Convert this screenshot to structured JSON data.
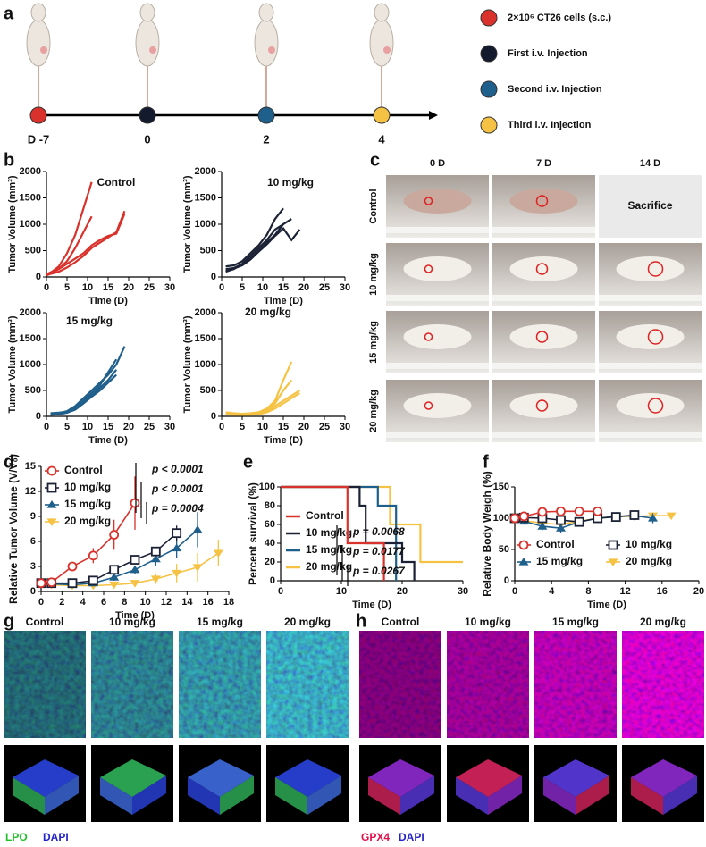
{
  "panel_labels": [
    "a",
    "b",
    "c",
    "d",
    "e",
    "f",
    "g",
    "h"
  ],
  "timeline": {
    "days": [
      "D -7",
      "0",
      "2",
      "4"
    ],
    "legend": [
      {
        "label": "2×10⁶ CT26 cells (s.c.)",
        "color": "#d9312b"
      },
      {
        "label": "First i.v. Injection",
        "color": "#141a2e"
      },
      {
        "label": "Second i.v. Injection",
        "color": "#1f5f8b"
      },
      {
        "label": "Third i.v. Injection",
        "color": "#f6c244"
      }
    ]
  },
  "photos": {
    "columns": [
      "0 D",
      "7 D",
      "14 D"
    ],
    "rows": [
      "Control",
      "10 mg/kg",
      "15 mg/kg",
      "20 mg/kg"
    ],
    "sacrifice": "Sacrifice"
  },
  "staining_g": {
    "columns": [
      "Control",
      "10 mg/kg",
      "15 mg/kg",
      "20 mg/kg"
    ],
    "legend": [
      {
        "label": "LPO",
        "color": "#22c02a"
      },
      {
        "label": "DAPI",
        "color": "#2323c8"
      }
    ]
  },
  "staining_h": {
    "columns": [
      "Control",
      "10 mg/kg",
      "15 mg/kg",
      "20 mg/kg"
    ],
    "legend": [
      {
        "label": "GPX4",
        "color": "#e0104a"
      },
      {
        "label": "DAPI",
        "color": "#2323c8"
      }
    ]
  },
  "chart_data": [
    {
      "type": "line",
      "title": "Control",
      "xlabel": "Time (D)",
      "ylabel": "Tumor Volume (mm³)",
      "x": [
        0,
        1,
        3,
        5,
        7,
        9,
        11,
        13,
        15,
        17,
        19
      ],
      "xlim": [
        0,
        30
      ],
      "xticks": [
        0,
        5,
        10,
        15,
        20,
        25,
        30
      ],
      "ylim": [
        0,
        2000
      ],
      "yticks": [
        0,
        500,
        1000,
        1500,
        2000
      ],
      "series": [
        {
          "color": "#d9312b",
          "values": [
            50,
            80,
            200,
            450,
            800,
            1300,
            1800,
            null,
            null,
            null,
            null
          ]
        },
        {
          "color": "#d9312b",
          "values": [
            40,
            70,
            150,
            300,
            550,
            850,
            1150,
            null,
            null,
            null,
            null
          ]
        },
        {
          "color": "#d9312b",
          "values": [
            30,
            60,
            100,
            180,
            280,
            400,
            550,
            650,
            750,
            850,
            1250
          ]
        },
        {
          "color": "#d9312b",
          "values": [
            50,
            90,
            150,
            250,
            350,
            450,
            600,
            700,
            780,
            820,
            1200
          ]
        }
      ]
    },
    {
      "type": "line",
      "title": "10 mg/kg",
      "xlabel": "Time (D)",
      "ylabel": "Tumor Volume (mm³)",
      "x": [
        0,
        1,
        3,
        5,
        7,
        9,
        11,
        13,
        15,
        17,
        19
      ],
      "xlim": [
        0,
        30
      ],
      "xticks": [
        0,
        5,
        10,
        15,
        20,
        25,
        30
      ],
      "ylim": [
        0,
        2000
      ],
      "yticks": [
        0,
        500,
        1000,
        1500,
        2000
      ],
      "series": [
        {
          "color": "#1c2235",
          "values": [
            null,
            200,
            220,
            300,
            450,
            600,
            800,
            1100,
            1300,
            null,
            null
          ]
        },
        {
          "color": "#1c2235",
          "values": [
            null,
            150,
            170,
            250,
            400,
            550,
            700,
            900,
            1000,
            null,
            null
          ]
        },
        {
          "color": "#1c2235",
          "values": [
            null,
            100,
            150,
            250,
            350,
            500,
            650,
            800,
            1000,
            1100,
            null
          ]
        },
        {
          "color": "#1c2235",
          "values": [
            null,
            120,
            160,
            220,
            330,
            480,
            620,
            780,
            920,
            700,
            900
          ]
        }
      ]
    },
    {
      "type": "line",
      "title": "15 mg/kg",
      "xlabel": "Time (D)",
      "ylabel": "Tumor Volume (mm³)",
      "x": [
        0,
        1,
        3,
        5,
        7,
        9,
        11,
        13,
        15,
        17,
        19
      ],
      "xlim": [
        0,
        30
      ],
      "xticks": [
        0,
        5,
        10,
        15,
        20,
        25,
        30
      ],
      "ylim": [
        0,
        2000
      ],
      "yticks": [
        0,
        500,
        1000,
        1500,
        2000
      ],
      "series": [
        {
          "color": "#1f5f8b",
          "values": [
            null,
            50,
            60,
            100,
            200,
            350,
            500,
            650,
            800,
            1000,
            1350
          ]
        },
        {
          "color": "#1f5f8b",
          "values": [
            null,
            40,
            50,
            80,
            150,
            300,
            450,
            600,
            850,
            1100,
            null
          ]
        },
        {
          "color": "#1f5f8b",
          "values": [
            null,
            60,
            70,
            90,
            180,
            280,
            400,
            550,
            700,
            900,
            null
          ]
        },
        {
          "color": "#1f5f8b",
          "values": [
            null,
            30,
            40,
            70,
            130,
            250,
            380,
            500,
            650,
            800,
            null
          ]
        }
      ]
    },
    {
      "type": "line",
      "title": "20 mg/kg",
      "xlabel": "Time (D)",
      "ylabel": "Tumor Volume (mm³)",
      "x": [
        0,
        1,
        3,
        5,
        7,
        9,
        11,
        13,
        15,
        17,
        19
      ],
      "xlim": [
        0,
        30
      ],
      "xticks": [
        0,
        5,
        10,
        15,
        20,
        25,
        30
      ],
      "ylim": [
        0,
        2000
      ],
      "yticks": [
        0,
        500,
        1000,
        1500,
        2000
      ],
      "series": [
        {
          "color": "#f6c244",
          "values": [
            null,
            80,
            60,
            50,
            60,
            80,
            150,
            300,
            700,
            1050,
            null
          ]
        },
        {
          "color": "#f6c244",
          "values": [
            null,
            60,
            50,
            40,
            50,
            70,
            120,
            250,
            500,
            700,
            null
          ]
        },
        {
          "color": "#f6c244",
          "values": [
            null,
            40,
            30,
            30,
            40,
            50,
            100,
            200,
            300,
            400,
            500
          ]
        },
        {
          "color": "#f6c244",
          "values": [
            null,
            50,
            40,
            30,
            30,
            40,
            80,
            150,
            250,
            350,
            450
          ]
        }
      ]
    },
    {
      "type": "line",
      "xlabel": "Time (D)",
      "ylabel": "Relative Tumor Volume (V/V₀)",
      "x": [
        0,
        1,
        3,
        5,
        7,
        9,
        11,
        13,
        15,
        17
      ],
      "xlim": [
        0,
        18
      ],
      "xticks": [
        0,
        2,
        4,
        6,
        8,
        10,
        12,
        14,
        16,
        18
      ],
      "ylim": [
        0,
        15
      ],
      "yticks": [
        0,
        3,
        6,
        9,
        12,
        15
      ],
      "annotations": [
        "p < 0.0001",
        "p < 0.0001",
        "p = 0.0004"
      ],
      "series": [
        {
          "name": "Control",
          "color": "#d9312b",
          "marker": "circle",
          "values": [
            1,
            1.1,
            3,
            4.3,
            6.8,
            10.6,
            null,
            null,
            null,
            null
          ],
          "errors": [
            0.1,
            0.2,
            0.5,
            0.9,
            1.8,
            3.2,
            null,
            null,
            null,
            null
          ]
        },
        {
          "name": "10 mg/kg",
          "color": "#1c2235",
          "marker": "square",
          "values": [
            1,
            1,
            1,
            1.3,
            2.6,
            3.8,
            4.8,
            7,
            null,
            null
          ],
          "errors": [
            0.1,
            0.1,
            0.2,
            0.3,
            0.4,
            0.4,
            0.5,
            0.9,
            null,
            null
          ]
        },
        {
          "name": "15 mg/kg",
          "color": "#1f5f8b",
          "marker": "triangle",
          "values": [
            1,
            0.9,
            0.8,
            1,
            1.7,
            2.6,
            3.9,
            5.2,
            7.4,
            null
          ],
          "errors": [
            0.1,
            0.1,
            0.2,
            0.3,
            0.4,
            0.5,
            0.8,
            1.2,
            2.1,
            null
          ]
        },
        {
          "name": "20 mg/kg",
          "color": "#f6c244",
          "marker": "triangle-down",
          "values": [
            1,
            0.8,
            0.7,
            0.7,
            0.8,
            1,
            1.5,
            2.2,
            2.9,
            4.6
          ],
          "errors": [
            0.1,
            0.1,
            0.1,
            0.2,
            0.2,
            0.3,
            0.6,
            1.1,
            1.7,
            1.6
          ]
        }
      ]
    },
    {
      "type": "line",
      "xlabel": "Time (D)",
      "ylabel": "Percent survival (%)",
      "xlim": [
        0,
        30
      ],
      "xticks": [
        0,
        10,
        20,
        30
      ],
      "ylim": [
        0,
        100
      ],
      "yticks": [
        0,
        20,
        40,
        60,
        80,
        100
      ],
      "annotations": [
        "p = 0.0068",
        "p = 0.0177",
        "p = 0.0267"
      ],
      "series": [
        {
          "name": "Control",
          "color": "#d9312b",
          "x": [
            0,
            11,
            11,
            17,
            17
          ],
          "values": [
            100,
            100,
            40,
            40,
            0
          ]
        },
        {
          "name": "10 mg/kg",
          "color": "#1c2235",
          "x": [
            0,
            13,
            13,
            14,
            14,
            20,
            20,
            22,
            22
          ],
          "values": [
            100,
            100,
            80,
            80,
            40,
            40,
            20,
            20,
            0
          ]
        },
        {
          "name": "15 mg/kg",
          "color": "#1f5f8b",
          "x": [
            0,
            16,
            16,
            19,
            19
          ],
          "values": [
            100,
            100,
            80,
            80,
            0
          ]
        },
        {
          "name": "20 mg/kg",
          "color": "#f6c244",
          "x": [
            0,
            18,
            18,
            23,
            23,
            30
          ],
          "values": [
            100,
            100,
            60,
            60,
            20,
            20
          ]
        }
      ]
    },
    {
      "type": "line",
      "xlabel": "Time (D)",
      "ylabel": "Relative Body Weigh (%)",
      "x": [
        0,
        1,
        3,
        5,
        7,
        9,
        11,
        13,
        15,
        17
      ],
      "xlim": [
        0,
        20
      ],
      "xticks": [
        0,
        4,
        8,
        12,
        16,
        20
      ],
      "ylim": [
        0,
        150
      ],
      "yticks": [
        0,
        50,
        100,
        150
      ],
      "series": [
        {
          "name": "Control",
          "color": "#d9312b",
          "marker": "circle",
          "values": [
            100,
            103,
            110,
            111,
            111,
            111,
            null,
            null,
            null,
            null
          ],
          "errors": [
            3,
            3,
            5,
            7,
            7,
            6,
            null,
            null,
            null,
            null
          ]
        },
        {
          "name": "10 mg/kg",
          "color": "#1c2235",
          "marker": "square",
          "values": [
            100,
            101,
            100,
            97,
            94,
            100,
            102,
            105,
            null,
            null
          ],
          "errors": [
            3,
            3,
            5,
            4,
            5,
            4,
            5,
            6,
            null,
            null
          ]
        },
        {
          "name": "15 mg/kg",
          "color": "#1f5f8b",
          "marker": "triangle",
          "values": [
            100,
            95,
            87,
            84,
            94,
            100,
            103,
            104,
            100,
            null
          ],
          "errors": [
            3,
            4,
            6,
            7,
            6,
            5,
            6,
            7,
            8,
            null
          ]
        },
        {
          "name": "20 mg/kg",
          "color": "#f6c244",
          "marker": "triangle-down",
          "values": [
            100,
            96,
            92,
            90,
            95,
            100,
            103,
            103,
            104,
            104
          ],
          "errors": [
            3,
            3,
            4,
            5,
            4,
            4,
            5,
            5,
            5,
            4
          ]
        }
      ]
    }
  ]
}
